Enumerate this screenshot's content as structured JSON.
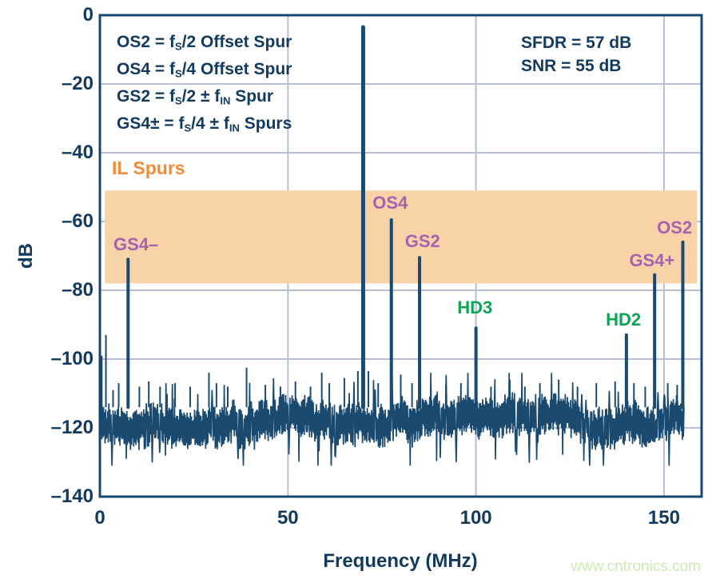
{
  "figure": {
    "watermark": "www.cntronics.com"
  },
  "colors": {
    "trace_navy": "#1a4a70",
    "text_navy": "#123a5e",
    "border_navy": "#15466f",
    "gridline": "#b9bfd2",
    "band_fill": "#f8d3a8",
    "orange_label": "#f58b35",
    "purple_label": "#a264ae",
    "green_label": "#0ca551",
    "watermark_green": "#cde9b4"
  },
  "chart_data": {
    "type": "line",
    "title": "",
    "xlabel": "Frequency (MHz)",
    "ylabel": "dB",
    "xlim": [
      0,
      160
    ],
    "ylim": [
      -140,
      0
    ],
    "grid": true,
    "x_ticks": [
      {
        "v": 0,
        "label": "0"
      },
      {
        "v": 50,
        "label": "50"
      },
      {
        "v": 100,
        "label": "100"
      },
      {
        "v": 150,
        "label": "150"
      }
    ],
    "y_ticks": [
      {
        "v": 0,
        "label": "0"
      },
      {
        "v": -20,
        "label": "–20"
      },
      {
        "v": -40,
        "label": "–40"
      },
      {
        "v": -60,
        "label": "–60"
      },
      {
        "v": -80,
        "label": "–80"
      },
      {
        "v": -100,
        "label": "–100"
      },
      {
        "v": -120,
        "label": "–120"
      },
      {
        "v": -140,
        "label": "–140"
      }
    ],
    "legend_lines": [
      [
        {
          "t": "OS2 = f"
        },
        {
          "t": "S",
          "sub": true
        },
        {
          "t": "/2 Offset Spur"
        }
      ],
      [
        {
          "t": "OS4 = f"
        },
        {
          "t": "S",
          "sub": true
        },
        {
          "t": "/4 Offset Spur"
        }
      ],
      [
        {
          "t": "GS2 = f"
        },
        {
          "t": "S",
          "sub": true
        },
        {
          "t": "/2 ± f"
        },
        {
          "t": "IN",
          "sub": true
        },
        {
          "t": " Spur"
        }
      ],
      [
        {
          "t": "GS4± = f"
        },
        {
          "t": "S",
          "sub": true
        },
        {
          "t": "/4 ± f"
        },
        {
          "t": "IN",
          "sub": true
        },
        {
          "t": " Spurs"
        }
      ]
    ],
    "stats": [
      "SFDR = 57 dB",
      "SNR = 55 dB"
    ],
    "il_band": {
      "label": "IL Spurs",
      "x0_mhz": 1.3,
      "x1_mhz": 158.8,
      "top_db": -51,
      "bottom_db": -78
    },
    "fundamental": {
      "freq_mhz": 70,
      "level_db": -3.5
    },
    "spurs": [
      {
        "id": "GS4-",
        "freq_mhz": 7.5,
        "level_db": -71,
        "label": "GS4–",
        "label_color": "purple",
        "label_x_mhz": 9.6,
        "label_y_db": -66.8
      },
      {
        "id": "OS4",
        "freq_mhz": 77.5,
        "level_db": -59.5,
        "label": "OS4",
        "label_color": "purple",
        "label_x_mhz": 77.2,
        "label_y_db": -54.6
      },
      {
        "id": "GS2",
        "freq_mhz": 85,
        "level_db": -70.5,
        "label": "GS2",
        "label_color": "purple",
        "label_x_mhz": 85.8,
        "label_y_db": -65.7
      },
      {
        "id": "HD3",
        "freq_mhz": 100,
        "level_db": -91,
        "label": "HD3",
        "label_color": "green",
        "label_x_mhz": 99.7,
        "label_y_db": -85.0
      },
      {
        "id": "HD2",
        "freq_mhz": 140,
        "level_db": -93,
        "label": "HD2",
        "label_color": "green",
        "label_x_mhz": 139.2,
        "label_y_db": -88.7
      },
      {
        "id": "GS4+",
        "freq_mhz": 147.5,
        "level_db": -75.5,
        "label": "GS4+",
        "label_color": "purple",
        "label_x_mhz": 146.8,
        "label_y_db": -71.4
      },
      {
        "id": "OS2",
        "freq_mhz": 155,
        "level_db": -66,
        "label": "OS2",
        "label_color": "purple",
        "label_x_mhz": 152.8,
        "label_y_db": -61.9
      }
    ],
    "minor_spurs": [
      [
        0.5,
        -99
      ],
      [
        1.6,
        -93
      ],
      [
        3.5,
        -109
      ],
      [
        5,
        -107
      ],
      [
        10.5,
        -108
      ],
      [
        13,
        -106.5
      ],
      [
        16,
        -108
      ],
      [
        20,
        -107
      ],
      [
        24,
        -108
      ],
      [
        29,
        -104
      ],
      [
        31,
        -107
      ],
      [
        34,
        -108
      ],
      [
        39,
        -102.5
      ],
      [
        44,
        -107.5
      ],
      [
        48,
        -108
      ],
      [
        52,
        -106.5
      ],
      [
        56,
        -108
      ],
      [
        59,
        -104
      ],
      [
        61,
        -107
      ],
      [
        65,
        -105.5
      ],
      [
        68.6,
        -103.5
      ],
      [
        70,
        -101
      ],
      [
        71.4,
        -103.5
      ],
      [
        74,
        -107
      ],
      [
        80,
        -104.5
      ],
      [
        83,
        -107
      ],
      [
        88,
        -108
      ],
      [
        92,
        -107.5
      ],
      [
        96,
        -107
      ],
      [
        104,
        -108
      ],
      [
        109,
        -106
      ],
      [
        113,
        -108
      ],
      [
        117,
        -107
      ],
      [
        122,
        -106
      ],
      [
        127,
        -108
      ],
      [
        132,
        -107
      ],
      [
        137,
        -106.5
      ],
      [
        142,
        -107
      ],
      [
        145,
        -108
      ],
      [
        151,
        -107
      ],
      [
        153.5,
        -107.5
      ]
    ],
    "noise": {
      "x_start_mhz": 0.4,
      "x_end_mhz": 155.3,
      "mean_db": -118,
      "typ_top_db": -112,
      "typ_bottom_db": -125,
      "peak_db": -104,
      "min_db": -131,
      "seed": 11
    }
  }
}
